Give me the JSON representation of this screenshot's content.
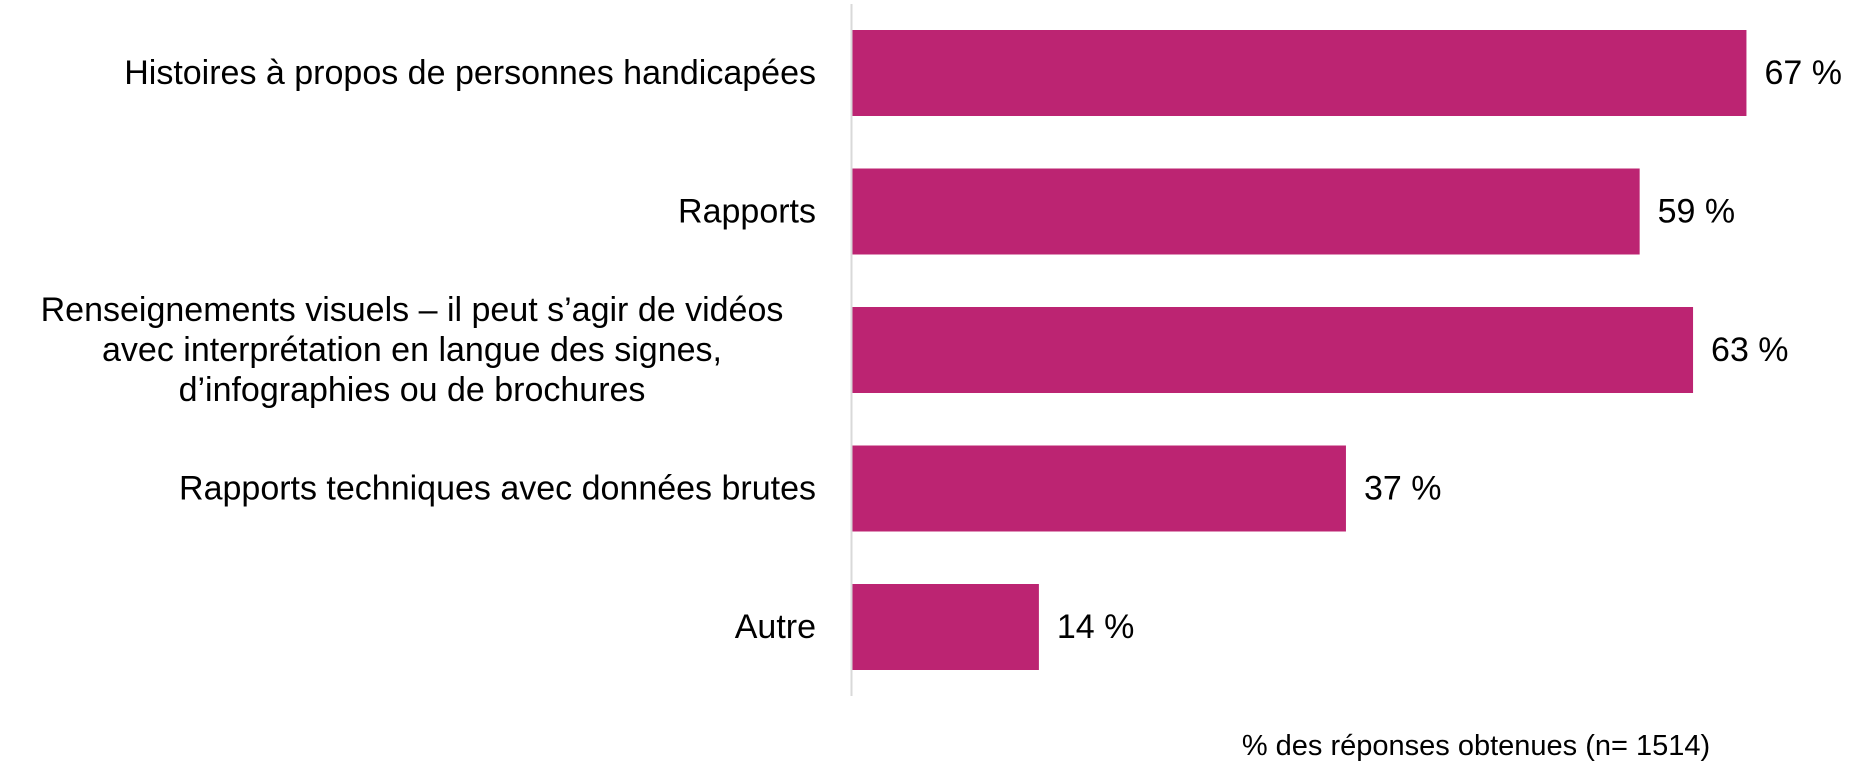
{
  "chart_data": {
    "type": "bar",
    "orientation": "horizontal",
    "categories": [
      [
        "Histoires à propos de personnes handicapées"
      ],
      [
        "Rapports"
      ],
      [
        "Renseignements visuels – il peut s’agir de vidéos",
        "avec interprétation en langue des signes,",
        "d’infographies ou de brochures"
      ],
      [
        "Rapports techniques avec données brutes"
      ],
      [
        "Autre"
      ]
    ],
    "values": [
      67,
      59,
      63,
      37,
      14
    ],
    "data_labels": [
      "67 %",
      "59 %",
      "63 %",
      "37 %",
      "14 %"
    ],
    "xlabel": "% des réponses obtenues (n= 1514)",
    "xlim": [
      0,
      100
    ],
    "grid": false,
    "legend": "none",
    "colors": {
      "bar": "#bc2472",
      "axis": "#d9d9d9",
      "text": "#000000"
    }
  }
}
